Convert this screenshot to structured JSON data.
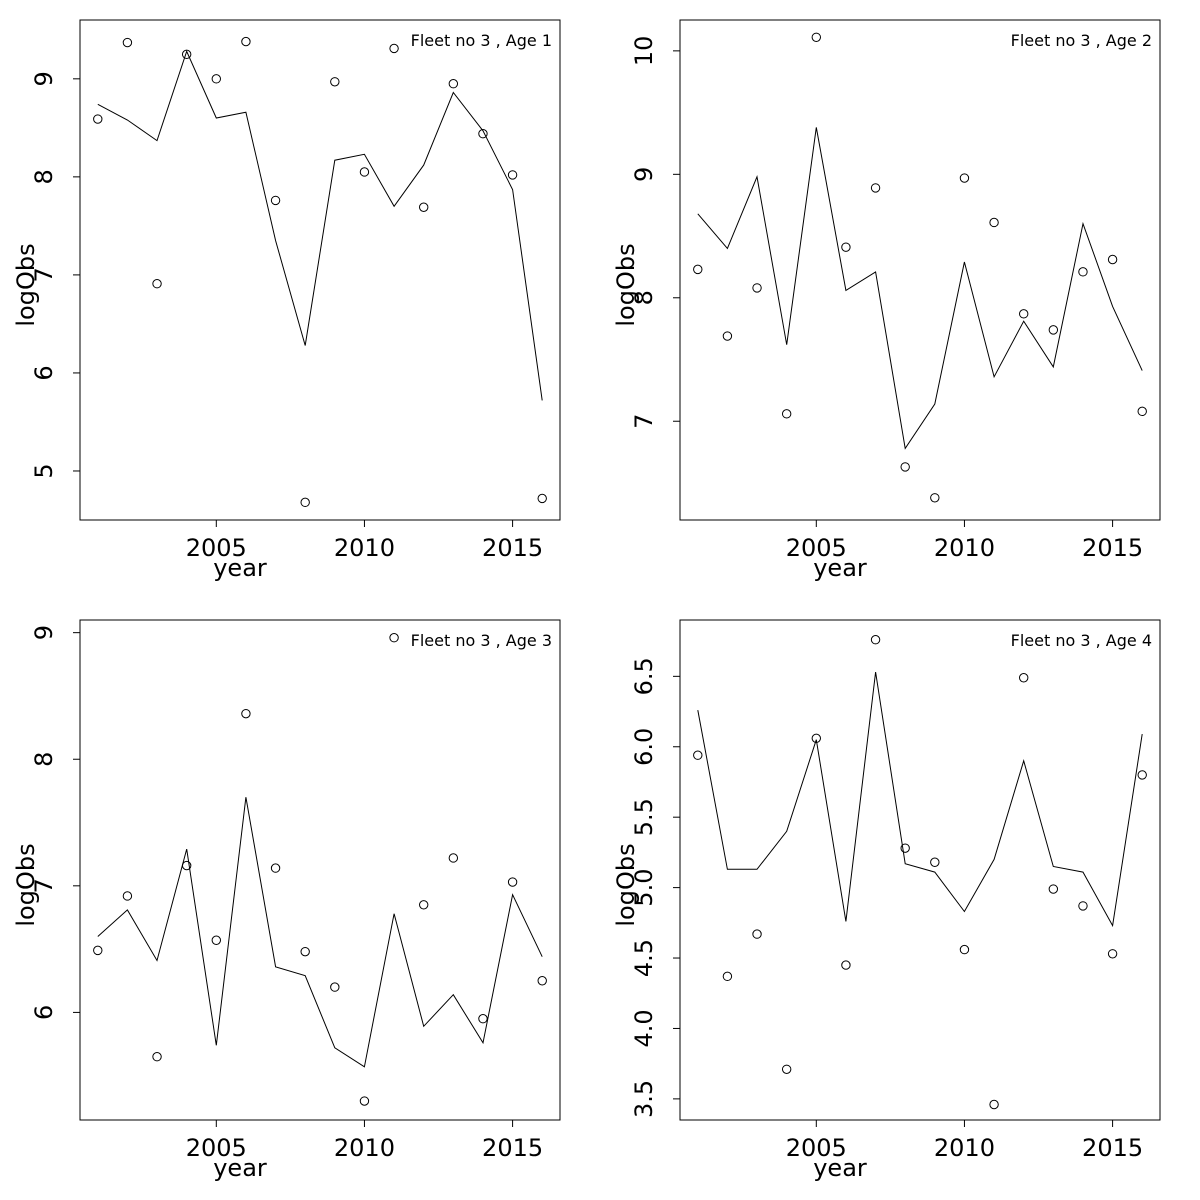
{
  "chart_data": [
    {
      "type": "scatter",
      "legend": "Fleet no 3 , Age 1",
      "xlabel": "year",
      "ylabel": "logObs",
      "xlim": [
        2000.4,
        2016.6
      ],
      "ylim": [
        4.5,
        9.6
      ],
      "xticks": [
        2005,
        2010,
        2015
      ],
      "yticks": [
        5,
        6,
        7,
        8,
        9
      ],
      "x": [
        2001,
        2002,
        2003,
        2004,
        2005,
        2006,
        2007,
        2008,
        2009,
        2010,
        2011,
        2012,
        2013,
        2014,
        2015,
        2016
      ],
      "observed": [
        8.59,
        9.37,
        6.91,
        9.25,
        9.0,
        9.38,
        7.76,
        4.68,
        8.97,
        8.05,
        9.31,
        7.69,
        8.95,
        8.44,
        8.02,
        4.72
      ],
      "fitted": [
        8.74,
        8.58,
        8.37,
        9.28,
        8.6,
        8.66,
        7.35,
        6.28,
        8.17,
        8.23,
        7.7,
        8.12,
        8.86,
        8.47,
        7.87,
        5.72
      ]
    },
    {
      "type": "scatter",
      "legend": "Fleet no 3 , Age 2",
      "xlabel": "year",
      "ylabel": "logObs",
      "xlim": [
        2000.4,
        2016.6
      ],
      "ylim": [
        6.2,
        10.25
      ],
      "xticks": [
        2005,
        2010,
        2015
      ],
      "yticks": [
        7,
        8,
        9,
        10
      ],
      "x": [
        2001,
        2002,
        2003,
        2004,
        2005,
        2006,
        2007,
        2008,
        2009,
        2010,
        2011,
        2012,
        2013,
        2014,
        2015,
        2016
      ],
      "observed": [
        8.23,
        7.69,
        8.08,
        7.06,
        10.11,
        8.41,
        8.89,
        6.63,
        6.38,
        8.97,
        8.61,
        7.87,
        7.74,
        8.21,
        8.31,
        7.08
      ],
      "fitted": [
        8.68,
        8.4,
        8.98,
        7.62,
        9.38,
        8.06,
        8.21,
        6.78,
        7.14,
        8.29,
        7.36,
        7.81,
        7.44,
        8.6,
        7.93,
        7.41
      ]
    },
    {
      "type": "scatter",
      "legend": "Fleet no 3 , Age 3",
      "xlabel": "year",
      "ylabel": "logObs",
      "xlim": [
        2000.4,
        2016.6
      ],
      "ylim": [
        5.15,
        9.1
      ],
      "xticks": [
        2005,
        2010,
        2015
      ],
      "yticks": [
        6,
        7,
        8,
        9
      ],
      "x": [
        2001,
        2002,
        2003,
        2004,
        2005,
        2006,
        2007,
        2008,
        2009,
        2010,
        2011,
        2012,
        2013,
        2014,
        2015,
        2016
      ],
      "observed": [
        6.49,
        6.92,
        5.65,
        7.16,
        6.57,
        8.36,
        7.14,
        6.48,
        6.2,
        5.3,
        8.96,
        6.85,
        7.22,
        5.95,
        7.03,
        6.25
      ],
      "fitted": [
        6.6,
        6.81,
        6.41,
        7.29,
        5.74,
        7.7,
        6.36,
        6.29,
        5.72,
        5.57,
        6.78,
        5.89,
        6.14,
        5.76,
        6.93,
        6.44
      ]
    },
    {
      "type": "scatter",
      "legend": "Fleet no 3 , Age 4",
      "xlabel": "year",
      "ylabel": "logObs",
      "xlim": [
        2000.4,
        2016.6
      ],
      "ylim": [
        3.35,
        6.9
      ],
      "xticks": [
        2005,
        2010,
        2015
      ],
      "yticks": [
        3.5,
        4.0,
        4.5,
        5.0,
        5.5,
        6.0,
        6.5
      ],
      "x": [
        2001,
        2002,
        2003,
        2004,
        2005,
        2006,
        2007,
        2008,
        2009,
        2010,
        2011,
        2012,
        2013,
        2014,
        2015,
        2016
      ],
      "observed": [
        5.94,
        4.37,
        4.67,
        3.71,
        6.06,
        4.45,
        6.76,
        5.28,
        5.18,
        4.56,
        3.46,
        6.49,
        4.99,
        4.87,
        4.53,
        5.8
      ],
      "fitted": [
        6.26,
        5.13,
        5.13,
        5.4,
        6.05,
        4.76,
        6.53,
        5.17,
        5.11,
        4.83,
        5.2,
        5.9,
        5.15,
        5.11,
        4.73,
        6.09
      ]
    }
  ]
}
